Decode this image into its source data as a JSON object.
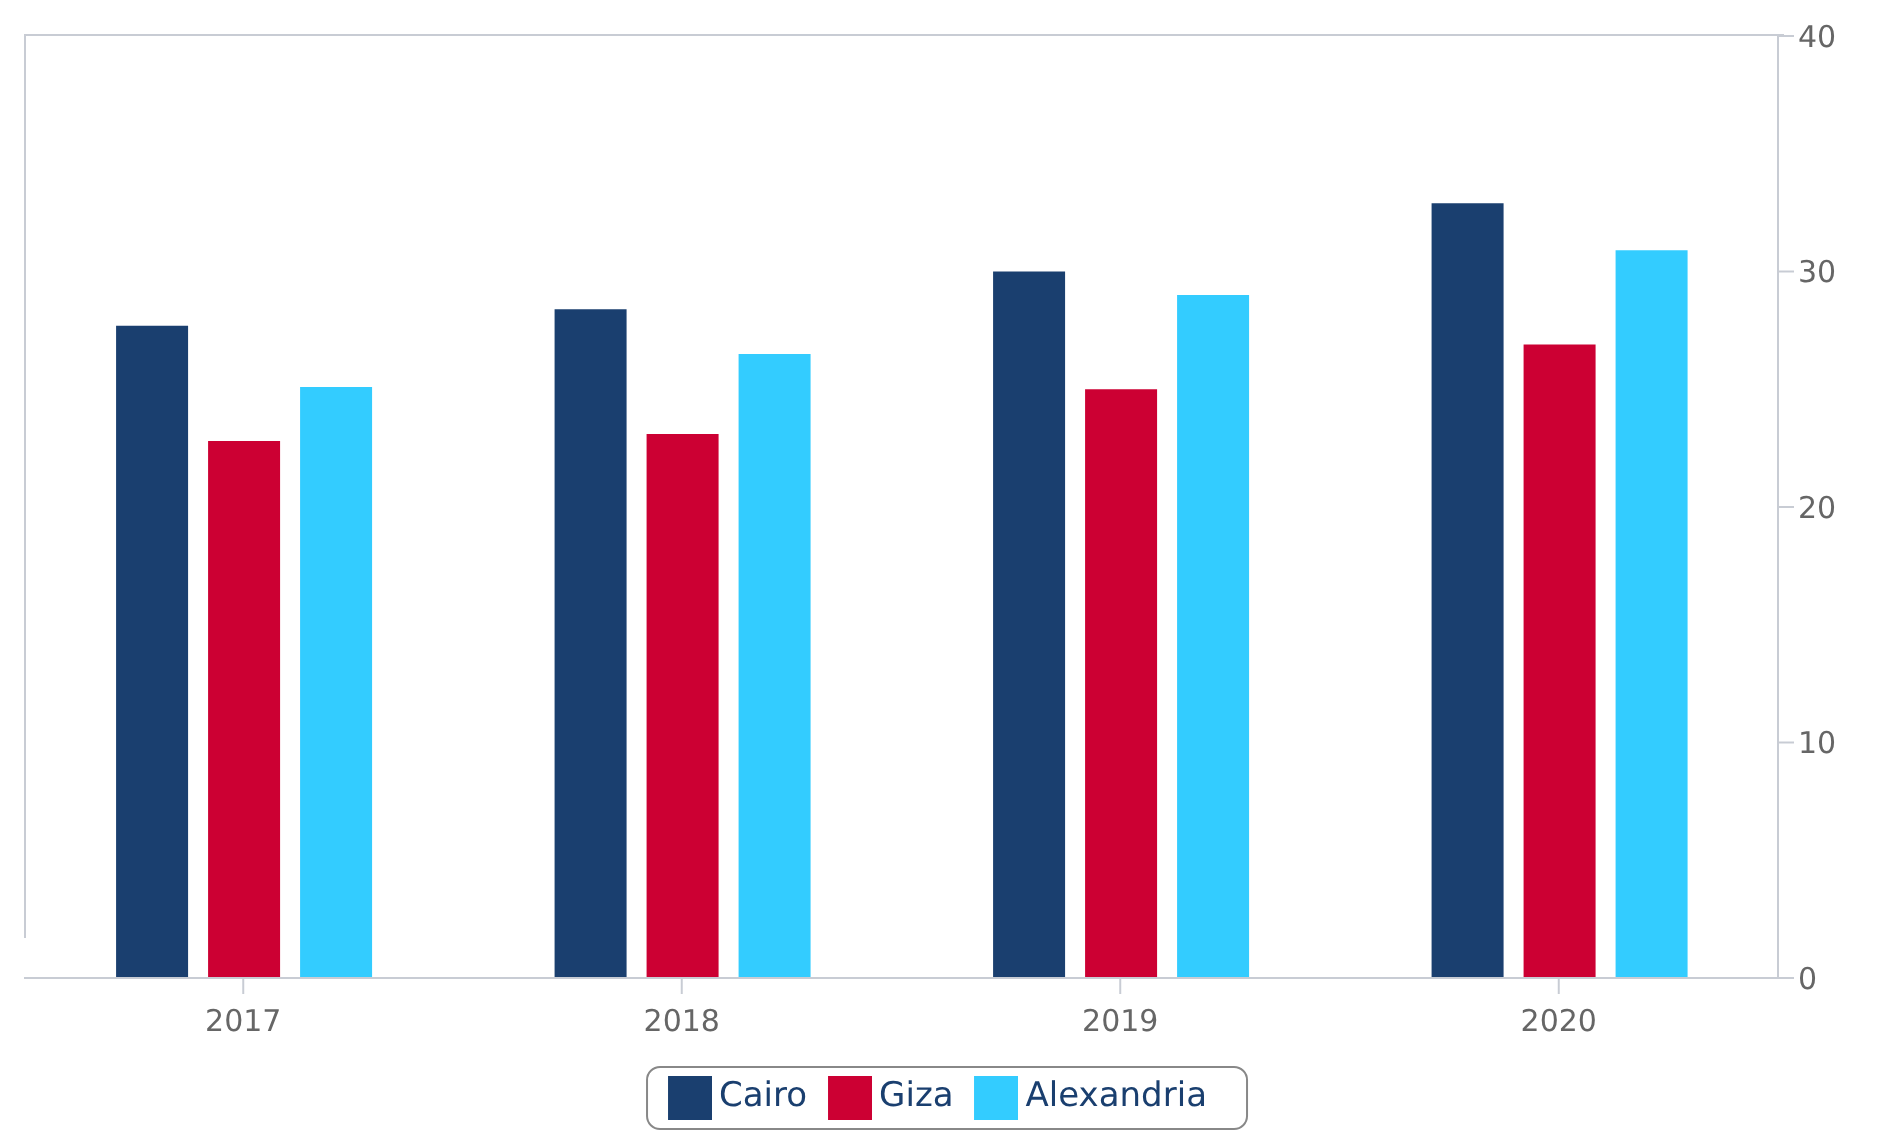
{
  "chart_data": {
    "type": "bar",
    "categories": [
      "2017",
      "2018",
      "2019",
      "2020"
    ],
    "series": [
      {
        "name": "Cairo",
        "color": "#1a3f6f",
        "values": [
          27.7,
          28.4,
          30.0,
          32.9
        ]
      },
      {
        "name": "Giza",
        "color": "#cc0033",
        "values": [
          22.8,
          23.1,
          25.0,
          26.9
        ]
      },
      {
        "name": "Alexandria",
        "color": "#33ccff",
        "values": [
          25.1,
          26.5,
          29.0,
          30.9
        ]
      }
    ],
    "ylim": [
      0,
      40
    ],
    "yticks": [
      0,
      10,
      20,
      30,
      40
    ],
    "grid": false,
    "legend": "bottom"
  }
}
